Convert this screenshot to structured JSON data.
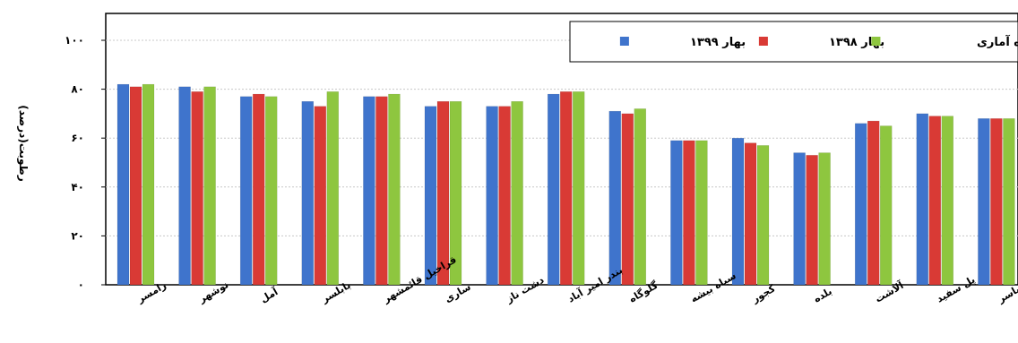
{
  "chart_data": {
    "type": "bar",
    "ylabel": "رطوبت(درصد)",
    "ylim": [
      0,
      100
    ],
    "y_ticks": [
      "۰",
      "۲۰",
      "۴۰",
      "۶۰",
      "۸۰",
      "۱۰۰"
    ],
    "grid": true,
    "legend_position": "top-right",
    "categories": [
      "رامسر",
      "نوشهر",
      "آمل",
      "بابلسر",
      "قراخیل قائمشهر",
      "ساری",
      "دشت ناز",
      "بندر امیر آباد",
      "گلوگاه",
      "سیاه بیشه",
      "کجور",
      "بلده",
      "آلاشت",
      "پل سفید",
      "کیاسر"
    ],
    "series": [
      {
        "name": "بهار ۱۳۹۹",
        "color": "#3f74cc",
        "values": [
          82,
          81,
          77,
          75,
          77,
          73,
          73,
          78,
          71,
          59,
          60,
          54,
          66,
          70,
          68
        ]
      },
      {
        "name": "بهار ۱۳۹۸",
        "color": "#d93a35",
        "values": [
          81,
          79,
          78,
          73,
          77,
          75,
          73,
          79,
          70,
          59,
          58,
          53,
          67,
          69,
          68
        ]
      },
      {
        "name": "بهار دوره آماری",
        "color": "#8ec63f",
        "values": [
          82,
          81,
          77,
          79,
          78,
          75,
          75,
          79,
          72,
          59,
          57,
          54,
          65,
          69,
          68
        ]
      }
    ]
  }
}
